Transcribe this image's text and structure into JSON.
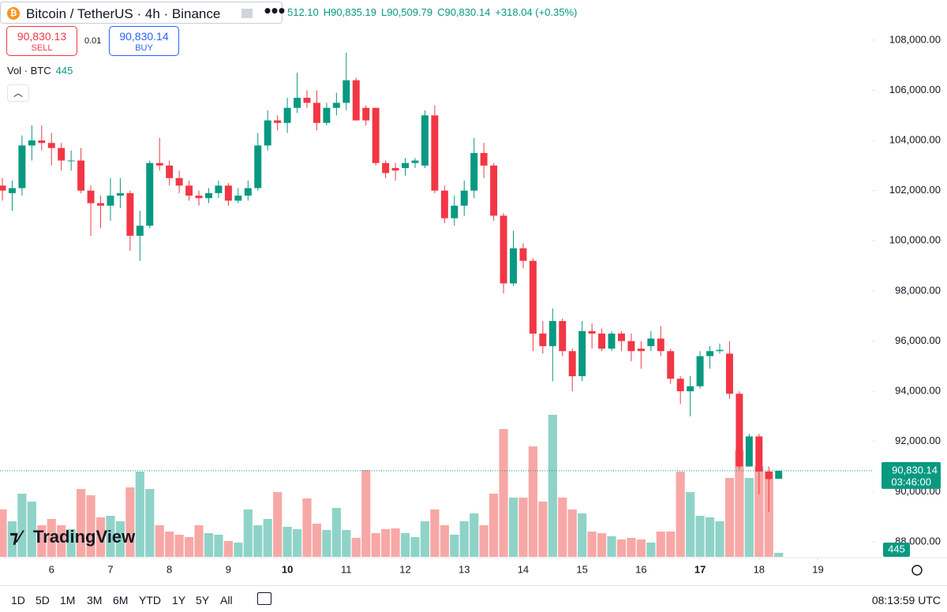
{
  "header": {
    "symbol": "Bitcoin / TetherUS · 4h · Binance",
    "open": "512.10",
    "high": "H90,835.19",
    "low": "L90,509.79",
    "close": "C90,830.14",
    "change": "+318.04 (+0.35%)"
  },
  "trade": {
    "sell_price": "90,830.13",
    "sell": "SELL",
    "quantity": "0.01",
    "buy_price": "90,830.14",
    "buy": "BUY"
  },
  "volume_legend": "Vol · BTC",
  "logo": "TradingView",
  "toolbar": {
    "ranges": [
      "1D",
      "5D",
      "1M",
      "3M",
      "6M",
      "YTD",
      "1Y",
      "5Y",
      "All"
    ],
    "clock": "08:13:59 UTC"
  },
  "chart_data": {
    "type": "candlestick",
    "open": [
      102200,
      101900,
      102100,
      103800,
      104000,
      103900,
      103700,
      103200,
      103200,
      102000,
      101500,
      101400,
      101800,
      101900,
      100200,
      100600,
      103100,
      103000,
      102500,
      102200,
      101800,
      101700,
      101900,
      102200,
      101600,
      101800,
      102100,
      103800,
      104800,
      104700,
      105300,
      105700,
      105500,
      104700,
      105300,
      105500,
      106400,
      105300,
      105300,
      103100,
      102900,
      102900,
      103100,
      103000,
      105000,
      102000,
      100900,
      101400,
      102000,
      103500,
      103000,
      101000,
      98300,
      99700,
      99200,
      96300,
      95800,
      96800,
      95600,
      94600,
      96400,
      96300,
      95700,
      96300,
      96000,
      95700,
      95800,
      96100,
      95600,
      94500,
      94000,
      94200,
      95400,
      95600,
      95500,
      93900,
      91000,
      92200,
      90800,
      90512.1
    ],
    "high": [
      102500,
      102400,
      104200,
      104600,
      104600,
      104300,
      103900,
      103600,
      103700,
      102200,
      101800,
      102500,
      102500,
      102000,
      101200,
      103200,
      104100,
      103200,
      102800,
      102400,
      102000,
      102100,
      102400,
      102300,
      102100,
      102400,
      104300,
      105200,
      105000,
      105700,
      106700,
      106000,
      106000,
      105500,
      105900,
      107500,
      106500,
      105400,
      105300,
      103200,
      103100,
      103300,
      103300,
      105200,
      105400,
      102200,
      101800,
      102400,
      104100,
      103900,
      103100,
      101100,
      100400,
      99900,
      99300,
      96800,
      97300,
      96900,
      95700,
      96800,
      96700,
      96500,
      96400,
      96400,
      96300,
      96000,
      96400,
      96600,
      95700,
      94600,
      94600,
      95600,
      95800,
      95900,
      96000,
      94000,
      92300,
      92300,
      91000,
      90835.19
    ],
    "low": [
      101600,
      101200,
      101800,
      103200,
      103600,
      103000,
      102800,
      102800,
      101900,
      100200,
      100500,
      100800,
      101300,
      99600,
      99200,
      100500,
      102800,
      102200,
      101900,
      101600,
      101400,
      101500,
      101700,
      101400,
      101500,
      101600,
      102000,
      103600,
      104400,
      104300,
      105100,
      105300,
      104400,
      104600,
      105000,
      105200,
      104800,
      104600,
      103000,
      102500,
      102400,
      102600,
      102900,
      102900,
      101900,
      100700,
      100600,
      101000,
      101700,
      102500,
      100800,
      97900,
      98200,
      98900,
      95600,
      95500,
      94400,
      95400,
      94000,
      94400,
      95700,
      95600,
      95600,
      95600,
      95200,
      94900,
      95600,
      95400,
      94300,
      93500,
      93000,
      94100,
      94900,
      95500,
      93700,
      90900,
      91000,
      89900,
      89200,
      90509.79
    ],
    "close": [
      102000,
      102100,
      103800,
      104000,
      103900,
      103700,
      103200,
      103200,
      102000,
      101500,
      101400,
      101800,
      101900,
      100200,
      100600,
      103100,
      103000,
      102500,
      102200,
      101800,
      101700,
      101900,
      102200,
      101600,
      101800,
      102100,
      103800,
      104800,
      104700,
      105300,
      105700,
      105500,
      104700,
      105300,
      105500,
      106400,
      104800,
      104800,
      103100,
      102700,
      102800,
      103100,
      103200,
      105000,
      102000,
      100900,
      101400,
      102000,
      103500,
      103000,
      101000,
      98300,
      99700,
      99200,
      96300,
      95800,
      96800,
      95600,
      94600,
      96400,
      96300,
      95700,
      96300,
      96000,
      95600,
      95600,
      96100,
      95600,
      94500,
      94000,
      94200,
      95400,
      95600,
      95650,
      93900,
      91000,
      92200,
      90800,
      90500,
      90830.14
    ],
    "volume": [
      5340,
      4005,
      7120,
      6230,
      3560,
      4272,
      3560,
      3115,
      7654,
      6942,
      4450,
      4628,
      4005,
      7832,
      9612,
      7654,
      3560,
      2848,
      2492,
      2225,
      3560,
      2670,
      2492,
      1780,
      1602,
      5340,
      3560,
      4272,
      7298,
      3382,
      3115,
      6586,
      3738,
      3026,
      5518,
      3026,
      2136,
      9790,
      2670,
      3115,
      3204,
      2670,
      2225,
      4005,
      5340,
      3560,
      2492,
      4005,
      4895,
      3560,
      7120,
      14418,
      6675,
      6675,
      12460,
      6230,
      16020,
      6675,
      5340,
      4895,
      2848,
      2670,
      2314,
      1958,
      2136,
      1958,
      1602,
      2848,
      2848,
      9612,
      7298,
      4628,
      4450,
      4005,
      8900,
      12015,
      8900,
      10235,
      9612,
      445
    ],
    "up_color": "#089981",
    "down_color": "#f23645",
    "volume_up_color": "#8fd3c8",
    "volume_down_color": "#f7a8a6",
    "xlim": [
      -0.24,
      88.5
    ],
    "xticks": [
      {
        "value": 5,
        "label": "6"
      },
      {
        "value": 11,
        "label": "7"
      },
      {
        "value": 17,
        "label": "8"
      },
      {
        "value": 23,
        "label": "9"
      },
      {
        "value": 29,
        "label": "10",
        "bold": true
      },
      {
        "value": 35,
        "label": "11"
      },
      {
        "value": 41,
        "label": "12"
      },
      {
        "value": 47,
        "label": "13"
      },
      {
        "value": 53,
        "label": "14"
      },
      {
        "value": 59,
        "label": "15"
      },
      {
        "value": 65,
        "label": "16"
      },
      {
        "value": 71,
        "label": "17",
        "bold": true
      },
      {
        "value": 77,
        "label": "18"
      },
      {
        "value": 83,
        "label": "19"
      }
    ],
    "ylim": [
      87400,
      109600
    ],
    "yticks": [
      {
        "value": 88000,
        "label": "88,000.00"
      },
      {
        "value": 90000,
        "label": "90,000.00"
      },
      {
        "value": 92000,
        "label": "92,000.00"
      },
      {
        "value": 94000,
        "label": "94,000.00"
      },
      {
        "value": 96000,
        "label": "96,000.00"
      },
      {
        "value": 98000,
        "label": "98,000.00"
      },
      {
        "value": 100000,
        "label": "100,000.00"
      },
      {
        "value": 102000,
        "label": "102,000.00"
      },
      {
        "value": 104000,
        "label": "104,000.00"
      },
      {
        "value": 106000,
        "label": "106,000.00"
      },
      {
        "value": 108000,
        "label": "108,000.00"
      }
    ],
    "last_price": {
      "value": 90830.14,
      "label": "90,830.14",
      "countdown": "03:46:00"
    },
    "grid": false
  }
}
